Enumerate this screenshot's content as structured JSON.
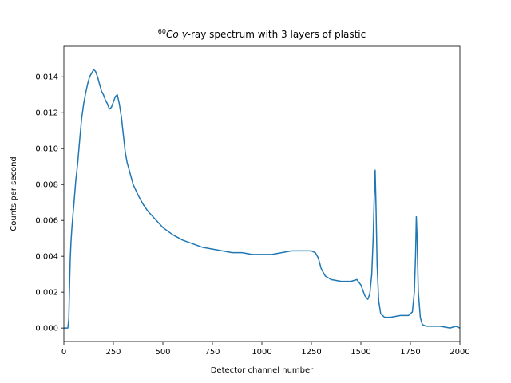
{
  "chart_data": {
    "type": "line",
    "title": {
      "superscript": "60",
      "element": "Co",
      "gamma": "γ",
      "rest": "-ray spectrum with 3 layers of plastic"
    },
    "xlabel": "Detector channel number",
    "ylabel": "Counts per second",
    "xlim": [
      0,
      2000
    ],
    "ylim": [
      -0.00075,
      0.0157
    ],
    "xticks": [
      0,
      250,
      500,
      750,
      1000,
      1250,
      1500,
      1750,
      2000
    ],
    "xtick_labels": [
      "0",
      "250",
      "500",
      "750",
      "1000",
      "1250",
      "1500",
      "1750",
      "2000"
    ],
    "yticks": [
      0.0,
      0.002,
      0.004,
      0.006,
      0.008,
      0.01,
      0.012,
      0.014
    ],
    "ytick_labels": [
      "0.000",
      "0.002",
      "0.004",
      "0.006",
      "0.008",
      "0.010",
      "0.012",
      "0.014"
    ],
    "grid": false,
    "legend": "none",
    "line_color": "#1f77b4",
    "series": [
      {
        "x": [
          0,
          20,
          25,
          28,
          32,
          36,
          40,
          45,
          50,
          55,
          60,
          70,
          80,
          90,
          100,
          110,
          120,
          130,
          140,
          150,
          160,
          170,
          180,
          190,
          200,
          210,
          220,
          230,
          240,
          250,
          260,
          270,
          280,
          290,
          300,
          310,
          320,
          330,
          340,
          350,
          375,
          400,
          425,
          450,
          475,
          500,
          550,
          600,
          650,
          700,
          750,
          800,
          850,
          900,
          950,
          1000,
          1050,
          1100,
          1150,
          1200,
          1250,
          1270,
          1285,
          1300,
          1320,
          1350,
          1400,
          1450,
          1480,
          1500,
          1520,
          1535,
          1545,
          1555,
          1562,
          1568,
          1572,
          1576,
          1582,
          1590,
          1600,
          1620,
          1650,
          1700,
          1740,
          1760,
          1770,
          1776,
          1780,
          1784,
          1790,
          1800,
          1810,
          1830,
          1850,
          1900,
          1950,
          1980,
          2000
        ],
        "y": [
          0.0,
          0.0,
          0.0005,
          0.002,
          0.0038,
          0.0048,
          0.0055,
          0.0062,
          0.0068,
          0.0075,
          0.0082,
          0.0092,
          0.0105,
          0.0117,
          0.0125,
          0.0131,
          0.0136,
          0.014,
          0.0142,
          0.0144,
          0.0143,
          0.014,
          0.0136,
          0.0132,
          0.013,
          0.0127,
          0.0125,
          0.0122,
          0.0123,
          0.0126,
          0.0129,
          0.013,
          0.0125,
          0.0118,
          0.0108,
          0.0098,
          0.0092,
          0.0088,
          0.0084,
          0.008,
          0.0074,
          0.0069,
          0.0065,
          0.0062,
          0.0059,
          0.0056,
          0.0052,
          0.0049,
          0.0047,
          0.0045,
          0.0044,
          0.0043,
          0.0042,
          0.0042,
          0.0041,
          0.0041,
          0.0041,
          0.0042,
          0.0043,
          0.0043,
          0.0043,
          0.0042,
          0.0039,
          0.0033,
          0.0029,
          0.0027,
          0.0026,
          0.0026,
          0.0027,
          0.0024,
          0.0018,
          0.0016,
          0.0019,
          0.003,
          0.005,
          0.0075,
          0.0088,
          0.007,
          0.0035,
          0.0015,
          0.0008,
          0.0006,
          0.0006,
          0.0007,
          0.0007,
          0.0009,
          0.002,
          0.004,
          0.0062,
          0.005,
          0.002,
          0.0006,
          0.0002,
          0.0001,
          0.0001,
          0.0001,
          0.0,
          0.0001,
          0.0
        ]
      }
    ]
  }
}
